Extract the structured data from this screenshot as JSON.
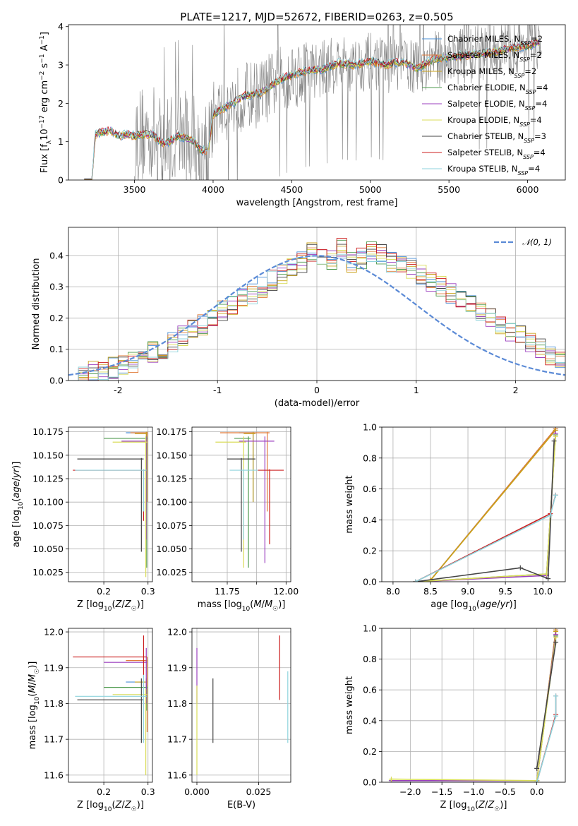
{
  "title": "PLATE=1217, MJD=52672, FIBERID=0263, z=0.505",
  "colors": {
    "Chabrier MILES": "#4a8fd6",
    "Salpeter MILES": "#e07b39",
    "Kroupa MILES": "#c9a21a",
    "Chabrier ELODIE": "#4e9a4e",
    "Salpeter ELODIE": "#9b3fbf",
    "Kroupa ELODIE": "#d9dc58",
    "Chabrier STELIB": "#444444",
    "Salpeter STELIB": "#cc1f1f",
    "Kroupa STELIB": "#8ed3dc",
    "gaussian": "#5b8ad6",
    "observed": "#808080"
  },
  "chart_data": [
    {
      "id": "spectrum",
      "type": "line",
      "xlabel": "wavelength [Angstrom, rest frame]",
      "ylabel": "Flux [f_λ 10^-17 erg cm^-2 s^-1 A^-1]",
      "xlim": [
        3080,
        6240
      ],
      "ylim": [
        0,
        4.05
      ],
      "xticks": [
        3500,
        4000,
        4500,
        5000,
        5500,
        6000
      ],
      "yticks": [
        0,
        1,
        2,
        3,
        4
      ],
      "legend_position": "top-right",
      "legend": [
        {
          "name": "Chabrier MILES",
          "nssp": "2"
        },
        {
          "name": "Salpeter MILES",
          "nssp": "2"
        },
        {
          "name": "Kroupa MILES",
          "nssp": "2"
        },
        {
          "name": "Chabrier ELODIE",
          "nssp": "4"
        },
        {
          "name": "Salpeter ELODIE",
          "nssp": "4"
        },
        {
          "name": "Kroupa ELODIE",
          "nssp": "4"
        },
        {
          "name": "Chabrier STELIB",
          "nssp": "3"
        },
        {
          "name": "Salpeter STELIB",
          "nssp": "4"
        },
        {
          "name": "Kroupa STELIB",
          "nssp": "4"
        }
      ],
      "model_trend": [
        [
          3180,
          0
        ],
        [
          3230,
          0
        ],
        [
          3250,
          1.2
        ],
        [
          3300,
          1.25
        ],
        [
          3350,
          1.3
        ],
        [
          3400,
          1.15
        ],
        [
          3450,
          1.2
        ],
        [
          3500,
          1.15
        ],
        [
          3560,
          1.2
        ],
        [
          3620,
          1.18
        ],
        [
          3680,
          0.95
        ],
        [
          3720,
          1.0
        ],
        [
          3780,
          1.15
        ],
        [
          3830,
          1.1
        ],
        [
          3880,
          1.0
        ],
        [
          3930,
          0.75
        ],
        [
          3970,
          0.8
        ],
        [
          4000,
          1.7
        ],
        [
          4100,
          1.95
        ],
        [
          4200,
          2.2
        ],
        [
          4300,
          2.25
        ],
        [
          4400,
          2.55
        ],
        [
          4500,
          2.75
        ],
        [
          4600,
          2.85
        ],
        [
          4700,
          2.9
        ],
        [
          4800,
          3.05
        ],
        [
          4900,
          3.0
        ],
        [
          5000,
          3.1
        ],
        [
          5100,
          3.0
        ],
        [
          5200,
          3.1
        ],
        [
          5300,
          2.9
        ],
        [
          5400,
          3.15
        ],
        [
          5500,
          3.2
        ],
        [
          5600,
          3.25
        ],
        [
          5700,
          3.3
        ],
        [
          5800,
          3.35
        ],
        [
          5900,
          3.45
        ],
        [
          6000,
          3.5
        ],
        [
          6080,
          3.6
        ]
      ]
    },
    {
      "id": "residuals",
      "type": "line",
      "xlabel": "(data-model)/error",
      "ylabel": "Normed distribution",
      "xlim": [
        -2.5,
        2.5
      ],
      "ylim": [
        0,
        0.49
      ],
      "xticks": [
        -2,
        -1,
        0,
        1,
        2
      ],
      "yticks": [
        0.0,
        0.1,
        0.2,
        0.3,
        0.4
      ],
      "legend_position": "top-right",
      "legend_label": "N(0, 1)",
      "bin_edges_start": -2.5,
      "bin_width": 0.1,
      "histogram_base": [
        0.03,
        0.02,
        0.03,
        0.03,
        0.04,
        0.05,
        0.06,
        0.07,
        0.09,
        0.1,
        0.12,
        0.14,
        0.16,
        0.18,
        0.2,
        0.22,
        0.24,
        0.26,
        0.28,
        0.3,
        0.32,
        0.34,
        0.36,
        0.38,
        0.41,
        0.4,
        0.39,
        0.42,
        0.38,
        0.39,
        0.41,
        0.4,
        0.38,
        0.37,
        0.36,
        0.34,
        0.32,
        0.3,
        0.28,
        0.26,
        0.24,
        0.22,
        0.2,
        0.18,
        0.16,
        0.14,
        0.12,
        0.1,
        0.08,
        0.07
      ]
    },
    {
      "id": "age-vs-Z",
      "type": "scatter",
      "xlabel": "Z [log10(Z/Z☉)]",
      "ylabel": "age  [log10(age/yr)]",
      "xlim": [
        0.12,
        0.31
      ],
      "ylim": [
        10.015,
        10.18
      ],
      "xticks": [
        0.2,
        0.3
      ],
      "xticklabels": [
        "0.2",
        "0.3"
      ],
      "yticks": [
        10.025,
        10.05,
        10.075,
        10.1,
        10.125,
        10.15,
        10.175
      ],
      "points": [
        {
          "s": "Chabrier MILES",
          "x": 0.297,
          "y": 10.174,
          "xl": 0.25,
          "xh": 0.299,
          "yl": 10.12,
          "yh": 10.175
        },
        {
          "s": "Salpeter MILES",
          "x": 0.298,
          "y": 10.174,
          "xl": 0.26,
          "xh": 0.299,
          "yl": 10.1,
          "yh": 10.175
        },
        {
          "s": "Kroupa MILES",
          "x": 0.296,
          "y": 10.173,
          "xl": 0.27,
          "xh": 0.298,
          "yl": 10.11,
          "yh": 10.175
        },
        {
          "s": "Chabrier ELODIE",
          "x": 0.297,
          "y": 10.168,
          "xl": 0.2,
          "xh": 0.299,
          "yl": 10.03,
          "yh": 10.17
        },
        {
          "s": "Salpeter ELODIE",
          "x": 0.296,
          "y": 10.165,
          "xl": 0.24,
          "xh": 0.298,
          "yl": 10.06,
          "yh": 10.17
        },
        {
          "s": "Kroupa ELODIE",
          "x": 0.295,
          "y": 10.164,
          "xl": 0.22,
          "xh": 0.298,
          "yl": 10.02,
          "yh": 10.17
        },
        {
          "s": "Chabrier STELIB",
          "x": 0.285,
          "y": 10.146,
          "xl": 0.14,
          "xh": 0.29,
          "yl": 10.047,
          "yh": 10.147
        },
        {
          "s": "Salpeter STELIB",
          "x": 0.29,
          "y": 10.134,
          "xl": 0.13,
          "xh": 0.297,
          "yl": 10.08,
          "yh": 10.135
        },
        {
          "s": "Kroupa STELIB",
          "x": 0.29,
          "y": 10.134,
          "xl": 0.135,
          "xh": 0.297,
          "yl": 10.09,
          "yh": 10.135
        }
      ]
    },
    {
      "id": "age-vs-mass",
      "type": "scatter",
      "xlabel": "mass [log10(M/M☉)]",
      "ylabel": "",
      "xlim": [
        11.6,
        12.02
      ],
      "ylim": [
        10.015,
        10.18
      ],
      "xticks": [
        11.75,
        11.875,
        12.0
      ],
      "xticklabels": [
        "11.75",
        "",
        "12.00"
      ],
      "yticks": [
        10.025,
        10.05,
        10.075,
        10.1,
        10.125,
        10.15,
        10.175
      ],
      "points": [
        {
          "s": "Chabrier MILES",
          "x": 11.86,
          "y": 10.174,
          "xl": 11.8,
          "xh": 11.87,
          "yl": 10.1,
          "yh": 10.175
        },
        {
          "s": "Salpeter MILES",
          "x": 11.92,
          "y": 10.174,
          "xl": 11.72,
          "xh": 11.93,
          "yl": 10.09,
          "yh": 10.175
        },
        {
          "s": "Kroupa MILES",
          "x": 11.86,
          "y": 10.173,
          "xl": 11.82,
          "xh": 11.87,
          "yl": 10.1,
          "yh": 10.175
        },
        {
          "s": "Chabrier ELODIE",
          "x": 11.84,
          "y": 10.168,
          "xl": 11.78,
          "xh": 11.85,
          "yl": 10.03,
          "yh": 10.17
        },
        {
          "s": "Salpeter ELODIE",
          "x": 11.91,
          "y": 10.165,
          "xl": 11.8,
          "xh": 11.95,
          "yl": 10.035,
          "yh": 10.17
        },
        {
          "s": "Kroupa ELODIE",
          "x": 11.82,
          "y": 10.164,
          "xl": 11.7,
          "xh": 11.83,
          "yl": 10.03,
          "yh": 10.17
        },
        {
          "s": "Chabrier STELIB",
          "x": 11.81,
          "y": 10.146,
          "xl": 11.75,
          "xh": 11.87,
          "yl": 10.047,
          "yh": 10.147
        },
        {
          "s": "Salpeter STELIB",
          "x": 11.93,
          "y": 10.134,
          "xl": 11.88,
          "xh": 11.99,
          "yl": 10.055,
          "yh": 10.135
        },
        {
          "s": "Kroupa STELIB",
          "x": 11.82,
          "y": 10.134,
          "xl": 11.76,
          "xh": 11.88,
          "yl": 10.06,
          "yh": 10.135
        }
      ]
    },
    {
      "id": "mass-weight-vs-age",
      "type": "line",
      "xlabel": "age  [log10(age/yr)]",
      "ylabel": "mass weight",
      "xlim": [
        7.85,
        10.3
      ],
      "ylim": [
        0,
        1.0
      ],
      "xticks": [
        8.0,
        8.5,
        9.0,
        9.5,
        10.0
      ],
      "xticklabels": [
        "8.0",
        "8.5",
        "9.0",
        "9.5",
        "10.0"
      ],
      "yticks": [
        0.0,
        0.2,
        0.4,
        0.6,
        0.8,
        1.0
      ],
      "series": [
        {
          "s": "Chabrier MILES",
          "x": [
            8.5,
            10.17
          ],
          "y": [
            0.01,
            0.99
          ]
        },
        {
          "s": "Salpeter MILES",
          "x": [
            8.5,
            10.17
          ],
          "y": [
            0.01,
            0.99
          ]
        },
        {
          "s": "Kroupa MILES",
          "x": [
            8.5,
            10.17
          ],
          "y": [
            0.01,
            0.98
          ]
        },
        {
          "s": "Chabrier ELODIE",
          "x": [
            8.3,
            10.05,
            10.17
          ],
          "y": [
            0.0,
            0.05,
            0.95
          ]
        },
        {
          "s": "Salpeter ELODIE",
          "x": [
            8.3,
            10.05,
            10.17
          ],
          "y": [
            0.0,
            0.04,
            0.96
          ]
        },
        {
          "s": "Kroupa ELODIE",
          "x": [
            8.3,
            10.05,
            10.17
          ],
          "y": [
            0.0,
            0.05,
            0.94
          ]
        },
        {
          "s": "Chabrier STELIB",
          "x": [
            8.3,
            9.7,
            10.07,
            10.15
          ],
          "y": [
            0.0,
            0.09,
            0.02,
            0.91
          ]
        },
        {
          "s": "Salpeter STELIB",
          "x": [
            8.3,
            10.1,
            10.17
          ],
          "y": [
            0.0,
            0.44,
            0.56
          ]
        },
        {
          "s": "Kroupa STELIB",
          "x": [
            8.3,
            10.1,
            10.17
          ],
          "y": [
            0.0,
            0.43,
            0.56
          ]
        }
      ]
    },
    {
      "id": "mass-vs-Z",
      "type": "scatter",
      "xlabel": "Z [log10(Z/Z☉)]",
      "ylabel": "mass [log10(M/M☉)]",
      "xlim": [
        0.12,
        0.31
      ],
      "ylim": [
        11.58,
        12.01
      ],
      "xticks": [
        0.2,
        0.3
      ],
      "xticklabels": [
        "0.2",
        "0.3"
      ],
      "yticks": [
        11.6,
        11.7,
        11.8,
        11.9,
        12.0
      ],
      "points": [
        {
          "s": "Chabrier MILES",
          "x": 0.297,
          "y": 11.86,
          "xl": 0.25,
          "xh": 0.299,
          "yl": 11.8,
          "yh": 11.87
        },
        {
          "s": "Salpeter MILES",
          "x": 0.298,
          "y": 11.92,
          "xl": 0.25,
          "xh": 0.299,
          "yl": 11.72,
          "yh": 11.93
        },
        {
          "s": "Kroupa MILES",
          "x": 0.296,
          "y": 11.86,
          "xl": 0.27,
          "xh": 0.298,
          "yl": 11.82,
          "yh": 11.87
        },
        {
          "s": "Chabrier ELODIE",
          "x": 0.297,
          "y": 11.845,
          "xl": 0.2,
          "xh": 0.299,
          "yl": 11.78,
          "yh": 11.85
        },
        {
          "s": "Salpeter ELODIE",
          "x": 0.296,
          "y": 11.915,
          "xl": 0.2,
          "xh": 0.298,
          "yl": 11.8,
          "yh": 11.955
        },
        {
          "s": "Kroupa ELODIE",
          "x": 0.295,
          "y": 11.825,
          "xl": 0.22,
          "xh": 0.298,
          "yl": 11.6,
          "yh": 11.84
        },
        {
          "s": "Chabrier STELIB",
          "x": 0.285,
          "y": 11.81,
          "xl": 0.14,
          "xh": 0.29,
          "yl": 11.69,
          "yh": 11.87
        },
        {
          "s": "Salpeter STELIB",
          "x": 0.29,
          "y": 11.93,
          "xl": 0.13,
          "xh": 0.297,
          "yl": 11.88,
          "yh": 11.99
        },
        {
          "s": "Kroupa STELIB",
          "x": 0.29,
          "y": 11.82,
          "xl": 0.135,
          "xh": 0.297,
          "yl": 11.69,
          "yh": 11.88
        }
      ]
    },
    {
      "id": "mass-vs-ebv",
      "type": "scatter",
      "xlabel": "E(B-V)",
      "ylabel": "",
      "xlim": [
        -0.002,
        0.038
      ],
      "ylim": [
        11.58,
        12.01
      ],
      "xticks": [
        0.0,
        0.025
      ],
      "xticklabels": [
        "0.000",
        "0.025"
      ],
      "yticks": [
        11.6,
        11.7,
        11.8,
        11.9,
        12.0
      ],
      "points": [
        {
          "s": "Salpeter ELODIE",
          "x": 0.0,
          "y": 11.91,
          "yl": 11.8,
          "yh": 11.955
        },
        {
          "s": "Kroupa ELODIE",
          "x": 0.0,
          "y": 11.7,
          "yl": 11.6,
          "yh": 11.85
        },
        {
          "s": "Chabrier STELIB",
          "x": 0.0065,
          "y": 11.8,
          "yl": 11.69,
          "yh": 11.87
        },
        {
          "s": "Salpeter STELIB",
          "x": 0.0335,
          "y": 11.9,
          "yl": 11.81,
          "yh": 11.99
        },
        {
          "s": "Kroupa STELIB",
          "x": 0.0368,
          "y": 11.8,
          "yl": 11.69,
          "yh": 11.89
        }
      ]
    },
    {
      "id": "mass-weight-vs-Z",
      "type": "line",
      "xlabel": "Z [log10(Z/Z☉)]",
      "ylabel": "mass weight",
      "xlim": [
        -2.45,
        0.45
      ],
      "ylim": [
        0,
        1.0
      ],
      "xticks": [
        -2.0,
        -1.5,
        -1.0,
        -0.5,
        0.0
      ],
      "xticklabels": [
        "−2.0",
        "−1.5",
        "−1.0",
        "−0.5",
        "0.0"
      ],
      "yticks": [
        0.0,
        0.2,
        0.4,
        0.6,
        0.8,
        1.0
      ],
      "series": [
        {
          "s": "Chabrier MILES",
          "x": [
            0.0,
            0.3
          ],
          "y": [
            0.01,
            0.99
          ]
        },
        {
          "s": "Salpeter MILES",
          "x": [
            0.0,
            0.3
          ],
          "y": [
            0.01,
            0.99
          ]
        },
        {
          "s": "Kroupa MILES",
          "x": [
            0.0,
            0.3
          ],
          "y": [
            0.01,
            0.98
          ]
        },
        {
          "s": "Chabrier ELODIE",
          "x": [
            -2.3,
            0.0,
            0.3
          ],
          "y": [
            0.01,
            0.01,
            0.95
          ]
        },
        {
          "s": "Salpeter ELODIE",
          "x": [
            -2.3,
            0.0,
            0.3
          ],
          "y": [
            0.01,
            0.01,
            0.96
          ]
        },
        {
          "s": "Kroupa ELODIE",
          "x": [
            -2.3,
            0.0,
            0.3
          ],
          "y": [
            0.02,
            0.01,
            0.94
          ]
        },
        {
          "s": "Chabrier STELIB",
          "x": [
            0.0,
            0.3
          ],
          "y": [
            0.09,
            0.91
          ]
        },
        {
          "s": "Salpeter STELIB",
          "x": [
            0.0,
            0.3,
            0.3
          ],
          "y": [
            0.0,
            0.44,
            0.56
          ]
        },
        {
          "s": "Kroupa STELIB",
          "x": [
            0.0,
            0.3,
            0.3
          ],
          "y": [
            0.0,
            0.43,
            0.56
          ]
        }
      ]
    }
  ]
}
